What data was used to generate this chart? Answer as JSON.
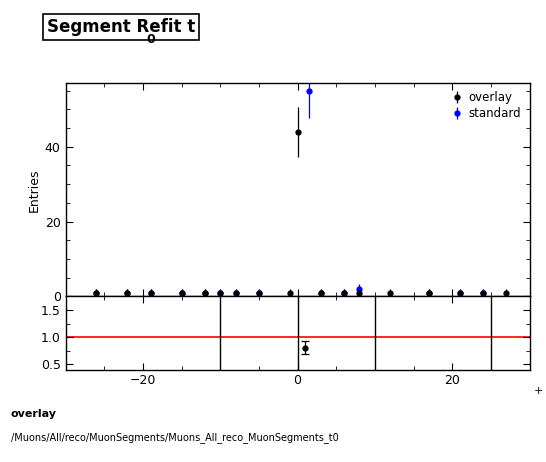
{
  "title": "Segment Refit t",
  "title_subscript": "0",
  "xlabel": "",
  "ylabel": "Entries",
  "xlim": [
    -30,
    30
  ],
  "ylim_main": [
    0,
    57
  ],
  "ylim_ratio": [
    0.4,
    1.75
  ],
  "ratio_yticks": [
    0.5,
    1.0,
    1.5
  ],
  "footer_line1": "overlay",
  "footer_line2": "/Muons/All/reco/MuonSegments/Muons_All_reco_MuonSegments_t0",
  "overlay_x": [
    -26,
    -22,
    -19,
    -15,
    -12,
    -10,
    -8,
    -5,
    -1,
    3,
    6,
    8,
    12,
    17,
    21,
    24,
    27,
    0
  ],
  "overlay_y": [
    1,
    1,
    1,
    1,
    1,
    1,
    1,
    1,
    1,
    1,
    1,
    1,
    1,
    1,
    1,
    1,
    1,
    44
  ],
  "overlay_yerr": [
    1,
    1,
    1,
    1,
    1,
    1,
    1,
    1,
    1,
    1,
    1,
    1,
    1,
    1,
    1,
    1,
    1,
    6.6
  ],
  "standard_x": [
    -26,
    -22,
    -19,
    -15,
    -12,
    -10,
    -8,
    -5,
    3,
    6,
    8,
    17,
    21,
    24,
    1.5
  ],
  "standard_y": [
    1,
    1,
    1,
    1,
    1,
    1,
    1,
    1,
    1,
    1,
    2,
    1,
    1,
    1,
    55
  ],
  "standard_yerr": [
    1,
    1,
    1,
    1,
    1,
    1,
    1,
    1,
    1,
    1,
    1.4,
    1,
    1,
    1,
    7.4
  ],
  "ratio_x": [
    1.0
  ],
  "ratio_y": [
    0.8
  ],
  "ratio_yerr": [
    0.12
  ],
  "vlines_ratio": [
    -10,
    0,
    10,
    25
  ],
  "background_color": "#ffffff"
}
